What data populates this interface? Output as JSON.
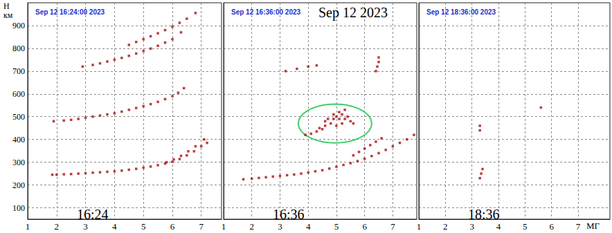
{
  "chart_data": [
    {
      "type": "scatter",
      "title": "Sep 12 16:24:00 2023",
      "time": "16:24",
      "ylabel": "Н км",
      "xlim": [
        1,
        7.7
      ],
      "xticks": [
        1,
        2,
        3,
        4,
        5,
        6,
        7
      ],
      "ylim": [
        50,
        1000
      ],
      "yticks": [
        100,
        200,
        300,
        400,
        500,
        600,
        700,
        800,
        900
      ],
      "grid": true,
      "tick_labels": true,
      "color": "#a80f0f",
      "marker": "square",
      "x": [
        1.85,
        2.0,
        2.25,
        2.5,
        2.75,
        3.0,
        3.25,
        3.5,
        3.75,
        4.0,
        4.25,
        4.5,
        4.75,
        5.0,
        5.25,
        5.5,
        5.75,
        6.0,
        6.25,
        6.5,
        6.75,
        7.0,
        7.2,
        5.8,
        6.05,
        6.3,
        6.55,
        6.8,
        7.1,
        1.9,
        2.25,
        2.5,
        2.75,
        3.0,
        3.25,
        3.5,
        3.75,
        4.0,
        4.25,
        4.5,
        4.75,
        5.0,
        5.25,
        5.5,
        5.75,
        6.0,
        6.2,
        6.4,
        2.9,
        3.25,
        3.5,
        3.75,
        4.0,
        4.25,
        4.5,
        4.75,
        5.0,
        5.25,
        5.5,
        5.75,
        6.0,
        6.3,
        4.5,
        4.75,
        5.0,
        5.25,
        5.5,
        5.75,
        6.0,
        6.25,
        6.5,
        6.8
      ],
      "values": [
        245,
        245,
        247,
        248,
        250,
        252,
        254,
        256,
        258,
        260,
        263,
        267,
        271,
        276,
        281,
        287,
        294,
        302,
        314,
        330,
        348,
        370,
        385,
        300,
        312,
        328,
        348,
        370,
        400,
        480,
        483,
        486,
        490,
        495,
        500,
        505,
        510,
        515,
        522,
        530,
        538,
        546,
        555,
        565,
        577,
        590,
        605,
        625,
        720,
        727,
        734,
        742,
        750,
        758,
        767,
        777,
        788,
        799,
        811,
        825,
        840,
        870,
        815,
        828,
        840,
        853,
        866,
        880,
        895,
        912,
        930,
        955
      ]
    },
    {
      "type": "scatter",
      "title": "Sep 12 16:36:00 2023",
      "time": "16:36",
      "date": "Sep 12 2023",
      "xlim": [
        1,
        7.85
      ],
      "xticks": [
        1,
        2,
        3,
        4,
        5,
        6,
        7
      ],
      "ylim": [
        50,
        1000
      ],
      "yticks": [
        100,
        200,
        300,
        400,
        500,
        600,
        700,
        800,
        900
      ],
      "grid": true,
      "tick_labels": "x",
      "color": "#a80f0f",
      "marker": "square",
      "x": [
        1.7,
        2.0,
        2.25,
        2.5,
        2.75,
        3.0,
        3.25,
        3.5,
        3.75,
        4.0,
        4.25,
        4.5,
        4.75,
        5.0,
        5.25,
        5.5,
        5.75,
        6.0,
        6.25,
        6.5,
        6.75,
        7.0,
        7.25,
        7.5,
        7.75,
        5.6,
        5.8,
        6.0,
        6.2,
        6.4,
        6.6,
        3.9,
        4.1,
        4.3,
        4.4,
        4.5,
        4.6,
        4.7,
        4.8,
        4.9,
        5.0,
        5.0,
        5.1,
        5.2,
        5.2,
        5.3,
        5.4,
        5.5,
        5.6,
        4.6,
        4.9,
        5.1,
        5.3,
        3.2,
        3.6,
        4.0,
        4.3,
        6.4,
        6.45,
        6.5,
        6.5
      ],
      "values": [
        225,
        228,
        231,
        234,
        237,
        240,
        243,
        246,
        250,
        255,
        260,
        265,
        272,
        280,
        288,
        296,
        305,
        315,
        327,
        340,
        354,
        370,
        385,
        400,
        420,
        330,
        345,
        360,
        375,
        390,
        405,
        420,
        425,
        435,
        450,
        445,
        460,
        490,
        470,
        490,
        500,
        460,
        520,
        510,
        470,
        490,
        500,
        480,
        470,
        480,
        510,
        490,
        530,
        700,
        710,
        720,
        725,
        700,
        720,
        740,
        760
      ],
      "highlight": {
        "shape": "ellipse",
        "x": 4.95,
        "y": 470,
        "rx": 1.3,
        "ry": 85,
        "color": "#3fcf6a"
      }
    },
    {
      "type": "scatter",
      "title": "Sep 12 18:36:00 2023",
      "time": "18:36",
      "xlabel": "МГ",
      "xlim": [
        1,
        8.2
      ],
      "xticks": [
        1,
        2,
        3,
        4,
        5,
        6,
        7
      ],
      "ylim": [
        50,
        1000
      ],
      "yticks": [
        100,
        200,
        300,
        400,
        500,
        600,
        700,
        800,
        900
      ],
      "grid": true,
      "tick_labels": "x",
      "color": "#a80f0f",
      "marker": "square",
      "x": [
        3.3,
        3.3,
        3.35,
        3.3,
        3.4,
        5.6
      ],
      "values": [
        440,
        460,
        250,
        230,
        270,
        540
      ]
    }
  ]
}
